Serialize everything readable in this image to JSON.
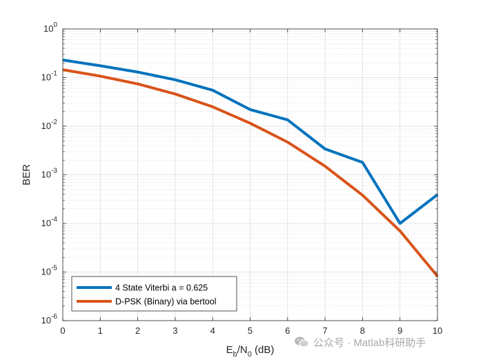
{
  "chart_data": {
    "type": "line",
    "xlabel": "E_b/N_0 (dB)",
    "ylabel": "BER",
    "x_ticks": [
      "0",
      "1",
      "2",
      "3",
      "4",
      "5",
      "6",
      "7",
      "8",
      "9",
      "10"
    ],
    "xlim": [
      0,
      10
    ],
    "ylim": [
      1e-06,
      1
    ],
    "y_scale": "log",
    "grid": true,
    "minor_grid": true,
    "legend_position": "bottom-left",
    "x": [
      0,
      1,
      2,
      3,
      4,
      5,
      6,
      7,
      8,
      9,
      10
    ],
    "series": [
      {
        "name": "4 State Viterbi a = 0.625",
        "color": "#0072bd",
        "values": [
          0.23,
          0.175,
          0.13,
          0.09,
          0.055,
          0.022,
          0.0135,
          0.0034,
          0.0018,
          0.0001,
          0.00039
        ]
      },
      {
        "name": "D-PSK (Binary) via bertool",
        "color": "#d95319",
        "values": [
          0.145,
          0.107,
          0.074,
          0.046,
          0.025,
          0.0115,
          0.0047,
          0.0015,
          0.00038,
          7e-05,
          8.2e-06
        ]
      }
    ]
  },
  "watermark": {
    "text": "公众号 · Matlab科研助手",
    "icon": "wechat-icon"
  }
}
